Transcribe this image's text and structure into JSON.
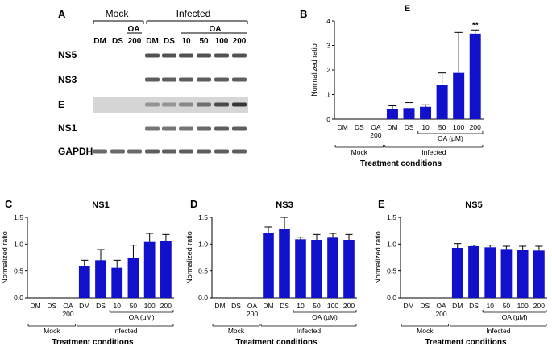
{
  "panel_a": {
    "letter": "A",
    "mock_label": "Mock",
    "infected_label": "Infected",
    "oa_label": "OA",
    "mock_lanes": [
      "DM",
      "DS"
    ],
    "mock_oa_conc": "200",
    "infected_lanes": [
      "DM",
      "DS"
    ],
    "infected_oa_concs": [
      "10",
      "50",
      "100",
      "200"
    ],
    "blots": [
      {
        "name": "NS5",
        "present": [
          0,
          0,
          0,
          1,
          1,
          1,
          1,
          1,
          1
        ],
        "strength": [
          0,
          0,
          0,
          0.75,
          0.75,
          0.75,
          0.75,
          0.75,
          0.75
        ],
        "tint": "#ffffff"
      },
      {
        "name": "NS3",
        "present": [
          0,
          0,
          0,
          1,
          1,
          1,
          1,
          1,
          1
        ],
        "strength": [
          0,
          0,
          0,
          0.7,
          0.7,
          0.7,
          0.7,
          0.7,
          0.7
        ],
        "tint": "#ffffff"
      },
      {
        "name": "E",
        "present": [
          0,
          0,
          0,
          1,
          1,
          1,
          1,
          1,
          1
        ],
        "strength": [
          0,
          0,
          0,
          0.35,
          0.35,
          0.4,
          0.55,
          0.75,
          0.85
        ],
        "tint": "#d6d6d6"
      },
      {
        "name": "NS1",
        "present": [
          0,
          0,
          0,
          1,
          1,
          1,
          1,
          1,
          1
        ],
        "strength": [
          0,
          0,
          0,
          0.6,
          0.6,
          0.6,
          0.65,
          0.7,
          0.7
        ],
        "tint": "#ffffff"
      },
      {
        "name": "GAPDH",
        "present": [
          1,
          1,
          1,
          1,
          1,
          1,
          1,
          1,
          1
        ],
        "strength": [
          0.65,
          0.65,
          0.65,
          0.7,
          0.7,
          0.7,
          0.7,
          0.7,
          0.7
        ],
        "tint": "#ffffff"
      }
    ]
  },
  "colors": {
    "bar": "#1111cc",
    "band": "#1a1a1a",
    "axis": "#000000"
  },
  "common": {
    "categories": [
      "DM",
      "DS",
      "OA 200",
      "DM",
      "DS",
      "10",
      "50",
      "100",
      "200"
    ],
    "mock_label": "Mock",
    "infected_label": "Infected",
    "oa_label": "OA (µM)",
    "ylabel": "Normalized ratio",
    "xlabel": "Treatment conditions"
  },
  "chart_data": [
    {
      "panel": "B",
      "type": "bar",
      "title": "E",
      "categories": [
        "DM",
        "DS",
        "OA 200",
        "DM",
        "DS",
        "10",
        "50",
        "100",
        "200"
      ],
      "values": [
        0,
        0,
        0,
        0.42,
        0.45,
        0.5,
        1.4,
        1.88,
        3.48
      ],
      "errors": [
        0,
        0,
        0,
        0.12,
        0.22,
        0.08,
        0.48,
        1.65,
        0.15
      ],
      "annotations": [
        {
          "index": 8,
          "text": "**"
        }
      ],
      "ylim": [
        0,
        4
      ],
      "yticks": [
        0,
        1,
        2,
        3,
        4
      ],
      "ylabel": "Normalized ratio",
      "xlabel": "Treatment conditions"
    },
    {
      "panel": "C",
      "type": "bar",
      "title": "NS1",
      "categories": [
        "DM",
        "DS",
        "OA 200",
        "DM",
        "DS",
        "10",
        "50",
        "100",
        "200"
      ],
      "values": [
        0,
        0,
        0,
        0.6,
        0.7,
        0.56,
        0.74,
        1.04,
        1.06
      ],
      "errors": [
        0,
        0,
        0,
        0.1,
        0.2,
        0.14,
        0.24,
        0.16,
        0.12
      ],
      "annotations": [],
      "ylim": [
        0,
        1.5
      ],
      "yticks": [
        0,
        0.5,
        1.0,
        1.5
      ],
      "ylabel": "Normalized ratio",
      "xlabel": "Treatment conditions"
    },
    {
      "panel": "D",
      "type": "bar",
      "title": "NS3",
      "categories": [
        "DM",
        "DS",
        "OA 200",
        "DM",
        "DS",
        "10",
        "50",
        "100",
        "200"
      ],
      "values": [
        0,
        0,
        0,
        1.2,
        1.28,
        1.09,
        1.08,
        1.12,
        1.08
      ],
      "errors": [
        0,
        0,
        0,
        0.12,
        0.22,
        0.04,
        0.1,
        0.08,
        0.1
      ],
      "annotations": [],
      "ylim": [
        0,
        1.5
      ],
      "yticks": [
        0,
        0.5,
        1.0,
        1.5
      ],
      "ylabel": "Normalized ratio",
      "xlabel": "Treatment conditions"
    },
    {
      "panel": "E",
      "type": "bar",
      "title": "NS5",
      "categories": [
        "DM",
        "DS",
        "OA 200",
        "DM",
        "DS",
        "10",
        "50",
        "100",
        "200"
      ],
      "values": [
        0,
        0,
        0,
        0.93,
        0.96,
        0.94,
        0.91,
        0.89,
        0.88
      ],
      "errors": [
        0,
        0,
        0,
        0.08,
        0.02,
        0.04,
        0.05,
        0.07,
        0.08
      ],
      "annotations": [],
      "ylim": [
        0,
        1.5
      ],
      "yticks": [
        0,
        0.5,
        1.0,
        1.5
      ],
      "ylabel": "Normalized ratio",
      "xlabel": "Treatment conditions"
    }
  ]
}
